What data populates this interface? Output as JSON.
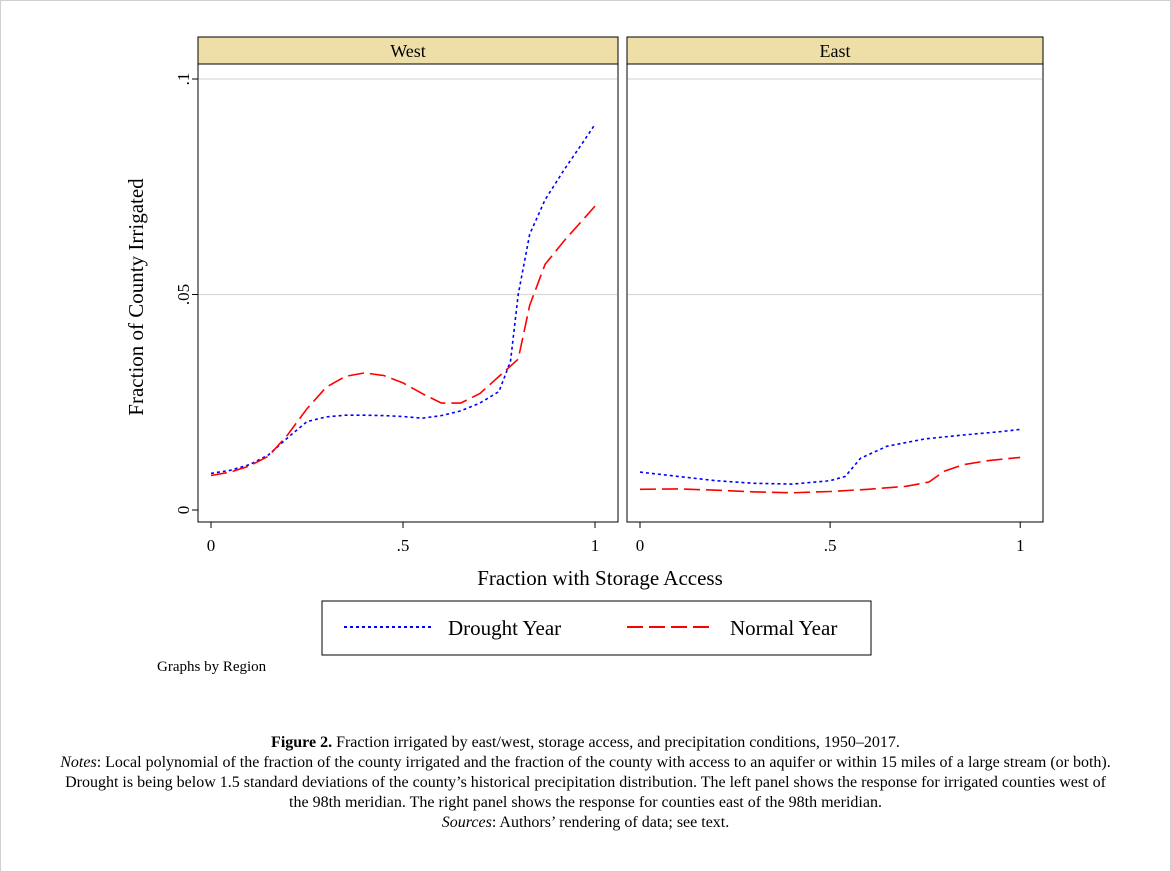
{
  "figure": {
    "note": "Graphs by Region",
    "caption": {
      "label": "Figure 2.",
      "title": " Fraction irrigated by east/west, storage access, and precipitation conditions, 1950–2017.",
      "notes_label": "Notes",
      "notes_text": ": Local polynomial of the fraction of the county irrigated and the fraction of the county with access to an aquifer or within 15 miles of a large stream (or both). Drought is being below 1.5 standard deviations of the county’s historical precipitation distribution. The left panel shows the response for irrigated counties west of the 98th meridian. The right panel shows the response for counties east of the 98th meridian.",
      "sources_label": "Sources",
      "sources_text": ": Authors’ rendering of data; see text."
    }
  },
  "chart_data": {
    "type": "line",
    "xlabel": "Fraction with Storage Access",
    "ylabel": "Fraction of County Irrigated",
    "xlim": [
      0,
      1
    ],
    "ylim": [
      0,
      0.1
    ],
    "x_ticks": [
      {
        "value": 0,
        "label": "0"
      },
      {
        "value": 0.5,
        "label": ".5"
      },
      {
        "value": 1,
        "label": "1"
      }
    ],
    "y_ticks": [
      {
        "value": 0,
        "label": "0"
      },
      {
        "value": 0.05,
        "label": ".05"
      },
      {
        "value": 0.1,
        "label": ".1"
      }
    ],
    "grid": "horizontal",
    "legend": {
      "position": "bottom",
      "entries": [
        {
          "name": "Drought Year",
          "color": "#0000ff",
          "style": "dotted"
        },
        {
          "name": "Normal Year",
          "color": "#ff0000",
          "style": "dashed"
        }
      ]
    },
    "panels": [
      {
        "title": "West",
        "series": [
          {
            "name": "Drought Year",
            "color": "#0000ff",
            "points": [
              [
                0,
                0.0085
              ],
              [
                0.05,
                0.0092
              ],
              [
                0.1,
                0.0105
              ],
              [
                0.15,
                0.0128
              ],
              [
                0.2,
                0.0168
              ],
              [
                0.25,
                0.0205
              ],
              [
                0.3,
                0.0216
              ],
              [
                0.35,
                0.022
              ],
              [
                0.4,
                0.022
              ],
              [
                0.45,
                0.0219
              ],
              [
                0.5,
                0.0217
              ],
              [
                0.55,
                0.0213
              ],
              [
                0.6,
                0.0219
              ],
              [
                0.65,
                0.023
              ],
              [
                0.7,
                0.0248
              ],
              [
                0.75,
                0.0275
              ],
              [
                0.78,
                0.0345
              ],
              [
                0.8,
                0.05
              ],
              [
                0.83,
                0.064
              ],
              [
                0.87,
                0.072
              ],
              [
                0.92,
                0.079
              ],
              [
                0.97,
                0.0855
              ],
              [
                1,
                0.0895
              ]
            ]
          },
          {
            "name": "Normal Year",
            "color": "#ff0000",
            "points": [
              [
                0,
                0.008
              ],
              [
                0.05,
                0.0088
              ],
              [
                0.1,
                0.0102
              ],
              [
                0.15,
                0.0125
              ],
              [
                0.2,
                0.0175
              ],
              [
                0.25,
                0.0235
              ],
              [
                0.3,
                0.0285
              ],
              [
                0.35,
                0.031
              ],
              [
                0.4,
                0.0318
              ],
              [
                0.45,
                0.0312
              ],
              [
                0.5,
                0.0295
              ],
              [
                0.55,
                0.027
              ],
              [
                0.6,
                0.0248
              ],
              [
                0.65,
                0.0248
              ],
              [
                0.7,
                0.027
              ],
              [
                0.75,
                0.031
              ],
              [
                0.8,
                0.035
              ],
              [
                0.83,
                0.0475
              ],
              [
                0.87,
                0.057
              ],
              [
                0.92,
                0.0625
              ],
              [
                0.97,
                0.0675
              ],
              [
                1,
                0.0705
              ]
            ]
          }
        ]
      },
      {
        "title": "East",
        "series": [
          {
            "name": "Drought Year",
            "color": "#0000ff",
            "points": [
              [
                0,
                0.0088
              ],
              [
                0.1,
                0.0078
              ],
              [
                0.2,
                0.0068
              ],
              [
                0.3,
                0.0062
              ],
              [
                0.4,
                0.006
              ],
              [
                0.5,
                0.0068
              ],
              [
                0.54,
                0.0078
              ],
              [
                0.58,
                0.012
              ],
              [
                0.65,
                0.0148
              ],
              [
                0.75,
                0.0165
              ],
              [
                0.85,
                0.0174
              ],
              [
                0.95,
                0.0182
              ],
              [
                1,
                0.0187
              ]
            ]
          },
          {
            "name": "Normal Year",
            "color": "#ff0000",
            "points": [
              [
                0,
                0.0048
              ],
              [
                0.1,
                0.0049
              ],
              [
                0.2,
                0.0046
              ],
              [
                0.3,
                0.0042
              ],
              [
                0.4,
                0.004
              ],
              [
                0.5,
                0.0043
              ],
              [
                0.6,
                0.0048
              ],
              [
                0.7,
                0.0055
              ],
              [
                0.76,
                0.0065
              ],
              [
                0.8,
                0.009
              ],
              [
                0.85,
                0.0105
              ],
              [
                0.92,
                0.0115
              ],
              [
                1,
                0.0122
              ]
            ]
          }
        ]
      }
    ]
  }
}
